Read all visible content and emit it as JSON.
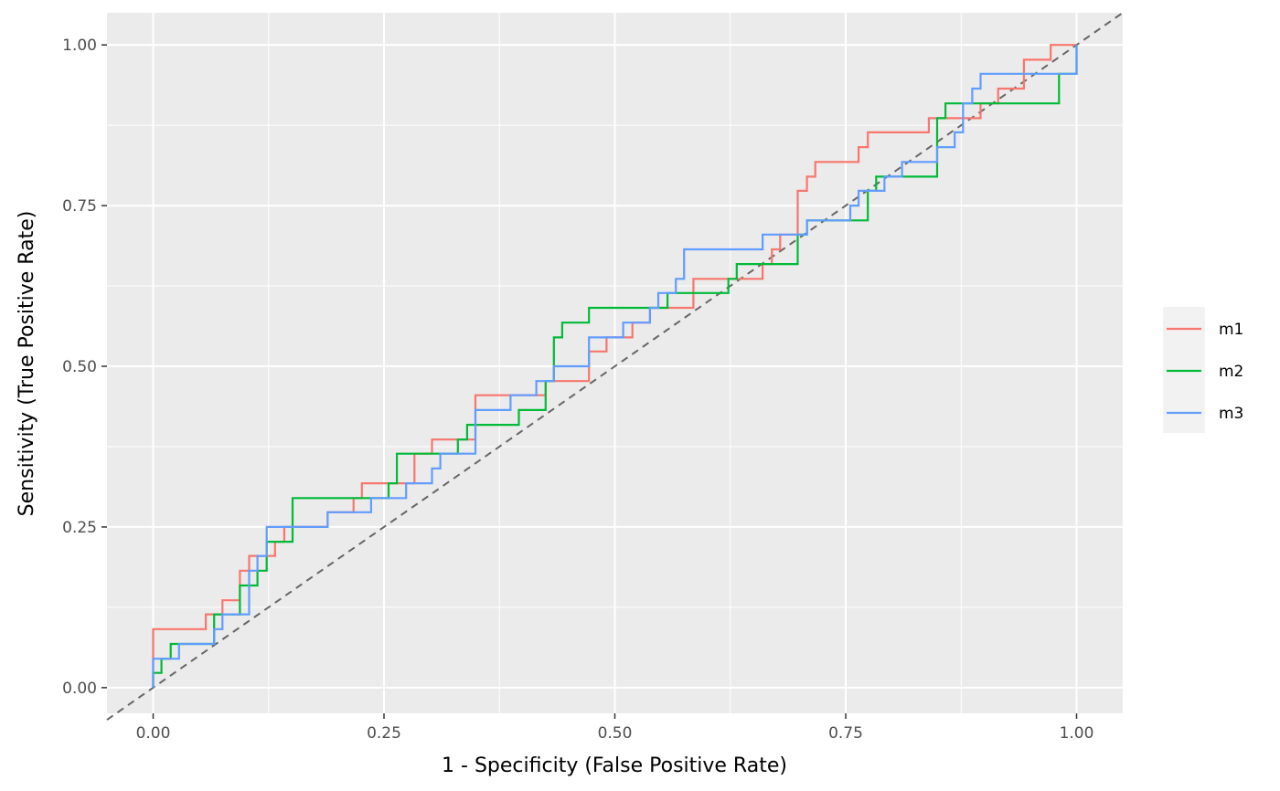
{
  "chart_data": {
    "type": "line",
    "title": "",
    "xlabel": "1 - Specificity (False Positive Rate)",
    "ylabel": "Sensitivity (True Positive Rate)",
    "xlim": [
      -0.05,
      1.05
    ],
    "ylim": [
      -0.04,
      1.05
    ],
    "x_ticks": [
      0,
      0.25,
      0.5,
      0.75,
      1
    ],
    "x_tick_labels": [
      "0.00",
      "0.25",
      "0.50",
      "0.75",
      "1.00"
    ],
    "y_ticks": [
      0,
      0.25,
      0.5,
      0.75,
      1
    ],
    "y_tick_labels": [
      "0.00",
      "0.25",
      "0.50",
      "0.75",
      "1.00"
    ],
    "grid": true,
    "legend_position": "right",
    "reference_line": {
      "from": [
        0,
        0
      ],
      "to": [
        1,
        1
      ],
      "style": "dashed",
      "color": "#666666"
    },
    "series": [
      {
        "name": "m1",
        "color": "#F8766D",
        "points": [
          [
            0,
            0
          ],
          [
            0,
            0.091
          ],
          [
            0.057,
            0.091
          ],
          [
            0.057,
            0.114
          ],
          [
            0.075,
            0.114
          ],
          [
            0.075,
            0.136
          ],
          [
            0.094,
            0.136
          ],
          [
            0.094,
            0.182
          ],
          [
            0.104,
            0.182
          ],
          [
            0.104,
            0.205
          ],
          [
            0.132,
            0.205
          ],
          [
            0.132,
            0.227
          ],
          [
            0.142,
            0.227
          ],
          [
            0.142,
            0.25
          ],
          [
            0.189,
            0.25
          ],
          [
            0.189,
            0.273
          ],
          [
            0.217,
            0.273
          ],
          [
            0.217,
            0.295
          ],
          [
            0.226,
            0.295
          ],
          [
            0.226,
            0.318
          ],
          [
            0.283,
            0.318
          ],
          [
            0.283,
            0.364
          ],
          [
            0.302,
            0.364
          ],
          [
            0.302,
            0.386
          ],
          [
            0.349,
            0.386
          ],
          [
            0.349,
            0.455
          ],
          [
            0.425,
            0.455
          ],
          [
            0.425,
            0.477
          ],
          [
            0.472,
            0.477
          ],
          [
            0.472,
            0.523
          ],
          [
            0.491,
            0.523
          ],
          [
            0.491,
            0.545
          ],
          [
            0.519,
            0.545
          ],
          [
            0.519,
            0.568
          ],
          [
            0.538,
            0.568
          ],
          [
            0.538,
            0.591
          ],
          [
            0.585,
            0.591
          ],
          [
            0.585,
            0.636
          ],
          [
            0.66,
            0.636
          ],
          [
            0.66,
            0.659
          ],
          [
            0.67,
            0.659
          ],
          [
            0.67,
            0.682
          ],
          [
            0.679,
            0.682
          ],
          [
            0.679,
            0.705
          ],
          [
            0.698,
            0.705
          ],
          [
            0.698,
            0.773
          ],
          [
            0.708,
            0.773
          ],
          [
            0.708,
            0.795
          ],
          [
            0.717,
            0.795
          ],
          [
            0.717,
            0.818
          ],
          [
            0.764,
            0.818
          ],
          [
            0.764,
            0.841
          ],
          [
            0.774,
            0.841
          ],
          [
            0.774,
            0.864
          ],
          [
            0.84,
            0.864
          ],
          [
            0.84,
            0.886
          ],
          [
            0.896,
            0.886
          ],
          [
            0.896,
            0.909
          ],
          [
            0.915,
            0.909
          ],
          [
            0.915,
            0.932
          ],
          [
            0.943,
            0.932
          ],
          [
            0.943,
            0.977
          ],
          [
            0.972,
            0.977
          ],
          [
            0.972,
            1
          ],
          [
            1,
            1
          ]
        ]
      },
      {
        "name": "m2",
        "color": "#00BA38",
        "points": [
          [
            0,
            0
          ],
          [
            0,
            0.023
          ],
          [
            0.009,
            0.023
          ],
          [
            0.009,
            0.045
          ],
          [
            0.019,
            0.045
          ],
          [
            0.019,
            0.068
          ],
          [
            0.066,
            0.068
          ],
          [
            0.066,
            0.114
          ],
          [
            0.094,
            0.114
          ],
          [
            0.094,
            0.159
          ],
          [
            0.113,
            0.159
          ],
          [
            0.113,
            0.182
          ],
          [
            0.123,
            0.182
          ],
          [
            0.123,
            0.227
          ],
          [
            0.151,
            0.227
          ],
          [
            0.151,
            0.295
          ],
          [
            0.255,
            0.295
          ],
          [
            0.255,
            0.318
          ],
          [
            0.264,
            0.318
          ],
          [
            0.264,
            0.364
          ],
          [
            0.33,
            0.364
          ],
          [
            0.33,
            0.386
          ],
          [
            0.34,
            0.386
          ],
          [
            0.34,
            0.409
          ],
          [
            0.396,
            0.409
          ],
          [
            0.396,
            0.432
          ],
          [
            0.425,
            0.432
          ],
          [
            0.425,
            0.477
          ],
          [
            0.434,
            0.477
          ],
          [
            0.434,
            0.545
          ],
          [
            0.443,
            0.545
          ],
          [
            0.443,
            0.568
          ],
          [
            0.472,
            0.568
          ],
          [
            0.472,
            0.591
          ],
          [
            0.557,
            0.591
          ],
          [
            0.557,
            0.614
          ],
          [
            0.623,
            0.614
          ],
          [
            0.623,
            0.636
          ],
          [
            0.632,
            0.636
          ],
          [
            0.632,
            0.659
          ],
          [
            0.698,
            0.659
          ],
          [
            0.698,
            0.705
          ],
          [
            0.708,
            0.705
          ],
          [
            0.708,
            0.727
          ],
          [
            0.774,
            0.727
          ],
          [
            0.774,
            0.773
          ],
          [
            0.783,
            0.773
          ],
          [
            0.783,
            0.795
          ],
          [
            0.849,
            0.795
          ],
          [
            0.849,
            0.886
          ],
          [
            0.858,
            0.886
          ],
          [
            0.858,
            0.909
          ],
          [
            0.981,
            0.909
          ],
          [
            0.981,
            0.955
          ],
          [
            1,
            0.955
          ],
          [
            1,
            1
          ]
        ]
      },
      {
        "name": "m3",
        "color": "#619CFF",
        "points": [
          [
            0,
            0
          ],
          [
            0,
            0.045
          ],
          [
            0.028,
            0.045
          ],
          [
            0.028,
            0.068
          ],
          [
            0.066,
            0.068
          ],
          [
            0.066,
            0.091
          ],
          [
            0.075,
            0.091
          ],
          [
            0.075,
            0.114
          ],
          [
            0.104,
            0.114
          ],
          [
            0.104,
            0.182
          ],
          [
            0.113,
            0.182
          ],
          [
            0.113,
            0.205
          ],
          [
            0.123,
            0.205
          ],
          [
            0.123,
            0.25
          ],
          [
            0.189,
            0.25
          ],
          [
            0.189,
            0.273
          ],
          [
            0.236,
            0.273
          ],
          [
            0.236,
            0.295
          ],
          [
            0.274,
            0.295
          ],
          [
            0.274,
            0.318
          ],
          [
            0.302,
            0.318
          ],
          [
            0.302,
            0.341
          ],
          [
            0.311,
            0.341
          ],
          [
            0.311,
            0.364
          ],
          [
            0.349,
            0.364
          ],
          [
            0.349,
            0.432
          ],
          [
            0.387,
            0.432
          ],
          [
            0.387,
            0.455
          ],
          [
            0.415,
            0.455
          ],
          [
            0.415,
            0.477
          ],
          [
            0.434,
            0.477
          ],
          [
            0.434,
            0.5
          ],
          [
            0.472,
            0.5
          ],
          [
            0.472,
            0.545
          ],
          [
            0.509,
            0.545
          ],
          [
            0.509,
            0.568
          ],
          [
            0.538,
            0.568
          ],
          [
            0.538,
            0.591
          ],
          [
            0.547,
            0.591
          ],
          [
            0.547,
            0.614
          ],
          [
            0.566,
            0.614
          ],
          [
            0.566,
            0.636
          ],
          [
            0.575,
            0.636
          ],
          [
            0.575,
            0.682
          ],
          [
            0.66,
            0.682
          ],
          [
            0.66,
            0.705
          ],
          [
            0.708,
            0.705
          ],
          [
            0.708,
            0.727
          ],
          [
            0.755,
            0.727
          ],
          [
            0.755,
            0.75
          ],
          [
            0.764,
            0.75
          ],
          [
            0.764,
            0.773
          ],
          [
            0.792,
            0.773
          ],
          [
            0.792,
            0.795
          ],
          [
            0.811,
            0.795
          ],
          [
            0.811,
            0.818
          ],
          [
            0.849,
            0.818
          ],
          [
            0.849,
            0.841
          ],
          [
            0.868,
            0.841
          ],
          [
            0.868,
            0.864
          ],
          [
            0.877,
            0.864
          ],
          [
            0.877,
            0.909
          ],
          [
            0.887,
            0.909
          ],
          [
            0.887,
            0.932
          ],
          [
            0.896,
            0.932
          ],
          [
            0.896,
            0.955
          ],
          [
            1,
            0.955
          ],
          [
            1,
            1
          ]
        ]
      }
    ]
  }
}
